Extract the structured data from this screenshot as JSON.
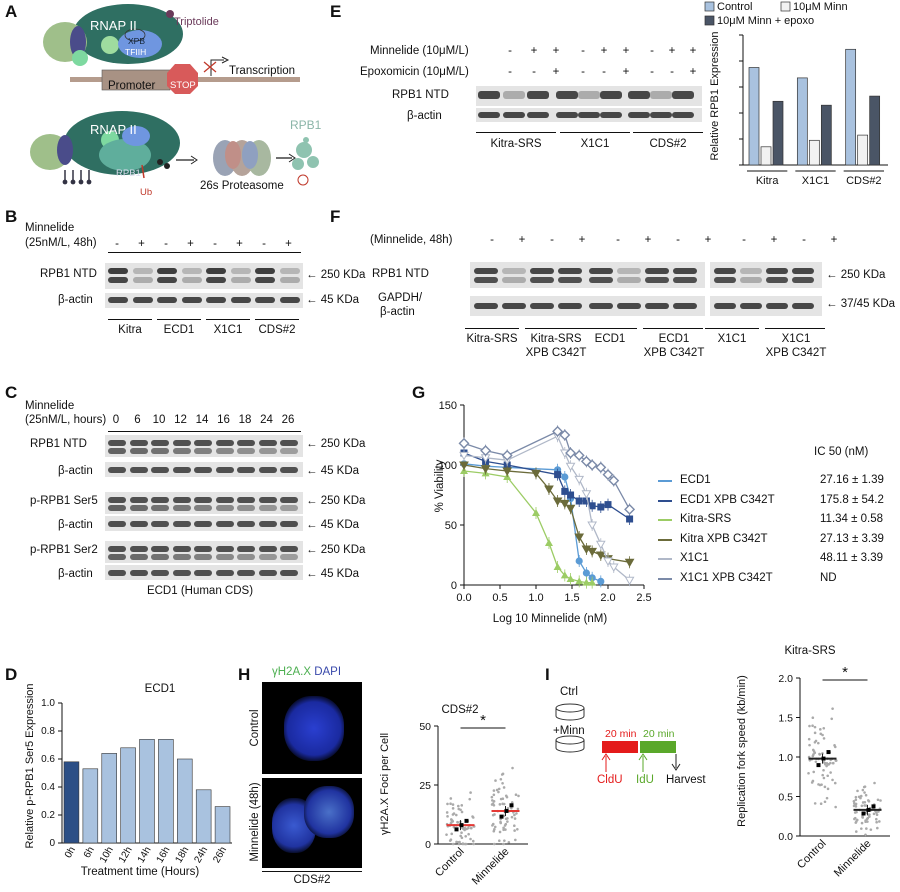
{
  "panels": {
    "A": "A",
    "B": "B",
    "C": "C",
    "D": "D",
    "E": "E",
    "F": "F",
    "G": "G",
    "H": "H",
    "I": "I"
  },
  "A": {
    "rnap": "RNAP II",
    "triptolide": "Triptolide",
    "xpb": "XPB",
    "tfiih": "TFIIH",
    "transcription": "Transcription",
    "promoter": "Promoter",
    "stop": "STOP",
    "rpb1_in": "RPB1",
    "ub": "Ub",
    "proteasome": "26s Proteasome",
    "rpb1_out": "RPB1"
  },
  "B": {
    "treat": "Minnelide",
    "treat2": "(25nM/L, 48h)",
    "signs": [
      "-",
      "+",
      "-",
      "+",
      "-",
      "+",
      "-",
      "+"
    ],
    "row1": "RPB1 NTD",
    "row2": "β-actin",
    "kda1": "← 250 KDa",
    "kda2": "← 45 KDa",
    "lines": [
      "Kitra",
      "ECD1",
      "X1C1",
      "CDS#2"
    ]
  },
  "C": {
    "treat": "Minnelide",
    "treat2": "(25nM/L, hours)",
    "times": [
      "0",
      "6",
      "10",
      "12",
      "14",
      "16",
      "18",
      "24",
      "26"
    ],
    "rows": [
      "RPB1 NTD",
      "β-actin",
      "p-RPB1 Ser5",
      "β-actin",
      "p-RPB1 Ser2",
      "β-actin"
    ],
    "kdas": [
      "← 250 KDa",
      "← 45 KDa",
      "← 250 KDa",
      "← 45 KDa",
      "← 250 KDa",
      "← 45 KDa"
    ],
    "caption": "ECD1 (Human CDS)"
  },
  "D": {
    "title": "ECD1",
    "ylabel": "Relative p-RPB1 Ser5 Expression",
    "xlabel": "Treatment time (Hours)"
  },
  "E": {
    "minn": "Minnelide (10μM/L)",
    "epox": "Epoxomicin (10μM/L)",
    "minn_signs": [
      "-",
      "+",
      "+",
      "-",
      "+",
      "+",
      "-",
      "+",
      "+"
    ],
    "epox_signs": [
      "-",
      "-",
      "+",
      "-",
      "-",
      "+",
      "-",
      "-",
      "+"
    ],
    "row1": "RPB1 NTD",
    "row2": "β-actin",
    "lines": [
      "Kitra-SRS",
      "X1C1",
      "CDS#2"
    ],
    "ylabel": "Relative RPB1 Expression",
    "legend": [
      "Control",
      "10μM Minn",
      "10μM Minn + epoxo"
    ]
  },
  "F": {
    "treat": "(Minnelide, 48h)",
    "signs": [
      "-",
      "+",
      "-",
      "+",
      "-",
      "+",
      "-",
      "+",
      "-",
      "+",
      "-",
      "+"
    ],
    "row1": "RPB1 NTD",
    "row2a": "GAPDH/",
    "row2b": "β-actin",
    "kda1": "← 250 KDa",
    "kda2": "← 37/45 KDa",
    "groups": [
      {
        "a": "Kitra-SRS",
        "b": "",
        "c": "Kitra-SRS",
        "d": "XPB C342T"
      },
      {
        "a": "ECD1",
        "b": "",
        "c": "ECD1",
        "d": "XPB C342T"
      },
      {
        "a": "X1C1",
        "b": "",
        "c": "X1C1",
        "d": "XPB C342T"
      }
    ]
  },
  "G": {
    "ylabel": "% Viability",
    "xlabel": "Log 10 Minnelide (nM)",
    "ic50": "IC 50 (nM)",
    "legend": [
      {
        "name": "ECD1",
        "ic": "27.16 ± 1.39"
      },
      {
        "name": "ECD1 XPB C342T",
        "ic": "175.8 ± 54.2"
      },
      {
        "name": "Kitra-SRS",
        "ic": "11.34 ± 0.58"
      },
      {
        "name": "Kitra XPB C342T",
        "ic": "27.13 ± 3.39"
      },
      {
        "name": "X1C1",
        "ic": "48.11 ± 3.39"
      },
      {
        "name": "X1C1 XPB C342T",
        "ic": "ND"
      }
    ]
  },
  "H": {
    "stain1": "γH2A.X",
    "stain2": "DAPI",
    "row1": "Control",
    "row2": "Minnelide (48h)",
    "caption": "CDS#2",
    "title": "CDS#2",
    "ylabel": "γH2A.X Foci per Cell",
    "star": "*",
    "cats": [
      "Control",
      "Minnelide"
    ]
  },
  "I": {
    "ctrl": "Ctrl",
    "minn": "+Minn",
    "t1": "20 min",
    "t2": "20 min",
    "cldu": "CldU",
    "idu": "IdU",
    "harvest": "Harvest",
    "title": "Kitra-SRS",
    "ylabel": "Replication fork speed (kb/min)",
    "star": "*",
    "cats": [
      "Control",
      "Minnelide"
    ]
  },
  "chart_data": [
    {
      "type": "bar",
      "title": "ECD1",
      "categories": [
        "0h",
        "6h",
        "10h",
        "12h",
        "14h",
        "16h",
        "18h",
        "24h",
        "26h"
      ],
      "values": [
        0.58,
        0.53,
        0.64,
        0.68,
        0.74,
        0.74,
        0.6,
        0.38,
        0.26
      ],
      "ylim": [
        0,
        1.0
      ],
      "yticks": [
        "0",
        "0.2",
        "0.4",
        "0.6",
        "0.8",
        "1.0"
      ],
      "xlabel": "Treatment time (Hours)",
      "ylabel": "Relative p-RPB1 Ser5 Expression"
    },
    {
      "type": "bar",
      "categories": [
        "Kitra",
        "X1C1",
        "CDS#2"
      ],
      "series": [
        {
          "name": "Control",
          "values": [
            0.75,
            0.67,
            0.89
          ]
        },
        {
          "name": "10μM Minn",
          "values": [
            0.14,
            0.19,
            0.23
          ]
        },
        {
          "name": "10μM Minn + epoxo",
          "values": [
            0.49,
            0.46,
            0.53
          ]
        }
      ],
      "ylim": [
        0,
        1.0
      ],
      "ylabel": "Relative RPB1 Expression"
    },
    {
      "type": "scatter",
      "xlabel": "Log 10 Minnelide (nM)",
      "ylabel": "% Viability",
      "xlim": [
        0,
        2.5
      ],
      "ylim": [
        0,
        150
      ],
      "xticks": [
        "0.0",
        "0.5",
        "1.0",
        "1.5",
        "2.0",
        "2.5"
      ],
      "yticks": [
        "0",
        "50",
        "100",
        "150"
      ],
      "x": [
        0,
        0.3,
        0.6,
        1.0,
        1.18,
        1.3,
        1.4,
        1.48,
        1.6,
        1.7,
        1.78,
        1.9,
        2.0,
        2.08,
        2.3
      ],
      "series": [
        {
          "name": "ECD1",
          "color": "#5b9bd5",
          "values": [
            101,
            99,
            98,
            null,
            null,
            96,
            90,
            72,
            20,
            10,
            6,
            3,
            null,
            null,
            null
          ]
        },
        {
          "name": "ECD1 XPB C342T",
          "color": "#2e4e8f",
          "values": [
            110,
            103,
            100,
            null,
            null,
            92,
            78,
            75,
            70,
            70,
            66,
            65,
            67,
            null,
            55
          ]
        },
        {
          "name": "Kitra-SRS",
          "color": "#9ccc65",
          "values": [
            95,
            93,
            90,
            60,
            35,
            15,
            8,
            5,
            3,
            2,
            2,
            null,
            null,
            null,
            null
          ]
        },
        {
          "name": "Kitra XPB C342T",
          "color": "#6b6b3a",
          "values": [
            100,
            97,
            95,
            93,
            80,
            70,
            68,
            64,
            40,
            30,
            28,
            25,
            22,
            null,
            19
          ]
        },
        {
          "name": "X1C1",
          "color": "#b0b8c8",
          "values": [
            108,
            106,
            104,
            null,
            null,
            124,
            110,
            99,
            88,
            76,
            50,
            34,
            20,
            15,
            4
          ]
        },
        {
          "name": "X1C1 XPB C342T",
          "color": "#7b8aa8",
          "values": [
            118,
            112,
            108,
            null,
            null,
            128,
            125,
            110,
            108,
            103,
            100,
            98,
            92,
            87,
            63
          ]
        }
      ]
    },
    {
      "type": "scatter",
      "title": "CDS#2",
      "categories": [
        "Control",
        "Minnelide"
      ],
      "means": [
        8,
        14
      ],
      "ylim": [
        0,
        50
      ],
      "yticks": [
        "0",
        "25",
        "50"
      ],
      "ylabel": "γH2A.X Foci per Cell"
    },
    {
      "type": "scatter",
      "title": "Kitra-SRS",
      "categories": [
        "Control",
        "Minnelide"
      ],
      "means": [
        0.98,
        0.33
      ],
      "ylim": [
        0,
        2.0
      ],
      "yticks": [
        "0.0",
        "0.5",
        "1.0",
        "1.5",
        "2.0"
      ],
      "ylabel": "Replication fork speed (kb/min)"
    }
  ]
}
